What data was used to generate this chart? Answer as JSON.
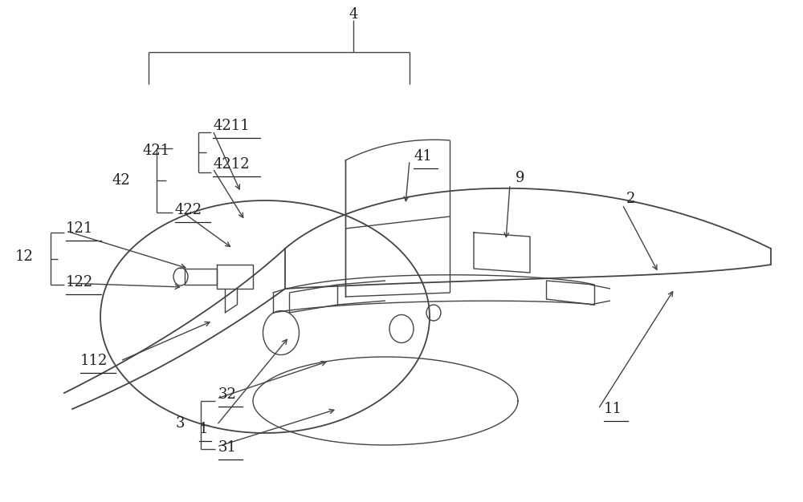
{
  "bg_color": "#ffffff",
  "line_color": "#444444",
  "text_color": "#222222",
  "figsize": [
    10.0,
    6.26
  ],
  "dpi": 100,
  "label_fontsize": 13,
  "underlined_labels": [
    "41",
    "4211",
    "4212",
    "422",
    "121",
    "122",
    "112",
    "1",
    "11",
    "32",
    "31"
  ]
}
